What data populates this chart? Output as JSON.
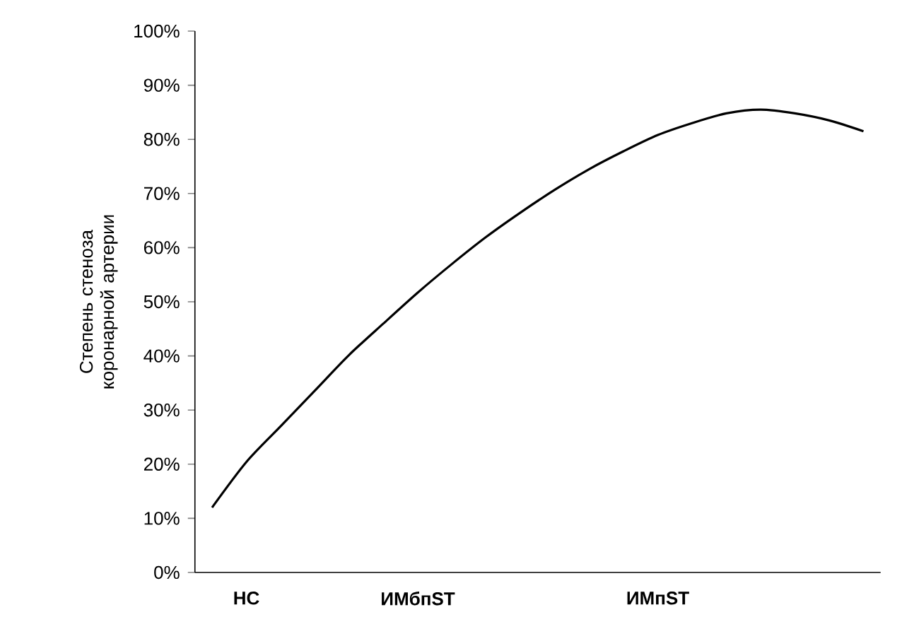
{
  "chart_data": {
    "type": "line",
    "ylabel": "Степень стеноза коронарной артерии",
    "categories": [
      null,
      "НС",
      null,
      null,
      null,
      null,
      "ИМбпST",
      null,
      null,
      null,
      null,
      null,
      null,
      "ИМпST",
      null,
      null,
      null,
      null,
      null,
      null
    ],
    "series": [
      {
        "color": "#000000",
        "values": [
          12,
          20.4,
          27,
          33.6,
          40.2,
          46,
          51.7,
          57,
          62,
          66.5,
          70.7,
          74.5,
          77.8,
          80.8,
          83,
          84.8,
          85.5,
          84.8,
          83.5,
          81.5
        ]
      }
    ],
    "ylim": [
      0,
      100
    ],
    "yticks": [
      {
        "value": 0,
        "label": "0%"
      },
      {
        "value": 10,
        "label": "10%"
      },
      {
        "value": 20,
        "label": "20%"
      },
      {
        "value": 30,
        "label": "30%"
      },
      {
        "value": 40,
        "label": "40%"
      },
      {
        "value": 50,
        "label": "50%"
      },
      {
        "value": 60,
        "label": "60%"
      },
      {
        "value": 70,
        "label": "70%"
      },
      {
        "value": 80,
        "label": "80%"
      },
      {
        "value": 90,
        "label": "90%"
      },
      {
        "value": 100,
        "label": "100%"
      }
    ],
    "grid": false
  }
}
